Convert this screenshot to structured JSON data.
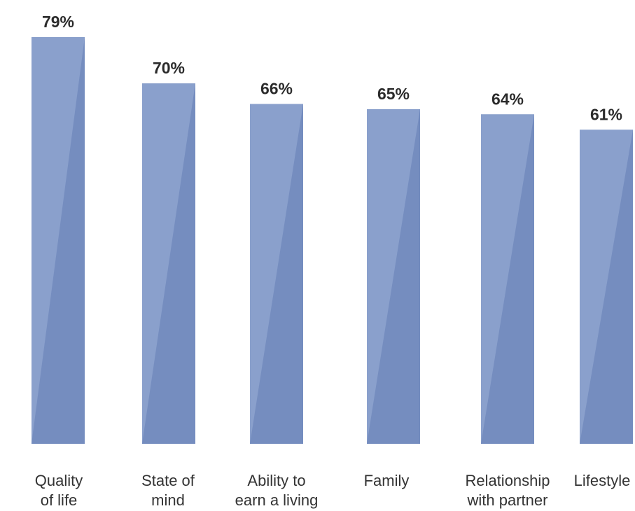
{
  "chart_data": {
    "type": "bar",
    "categories": [
      [
        "Quality",
        "of life"
      ],
      [
        "State of",
        "mind"
      ],
      [
        "Ability to",
        "earn a living"
      ],
      [
        "Family"
      ],
      [
        "Relationship",
        "with partner"
      ],
      [
        "Lifestyle"
      ]
    ],
    "values": [
      79,
      70,
      66,
      65,
      64,
      61
    ],
    "value_labels": [
      "79%",
      "70%",
      "66%",
      "65%",
      "64%",
      "61%"
    ],
    "ylim": [
      0,
      79
    ],
    "grid": false,
    "legend": "none",
    "colors": {
      "bar_light": "#8aa0cc",
      "bar_dark": "#758dbf",
      "label_text": "#2b2b2b",
      "category_text": "#333333"
    }
  }
}
